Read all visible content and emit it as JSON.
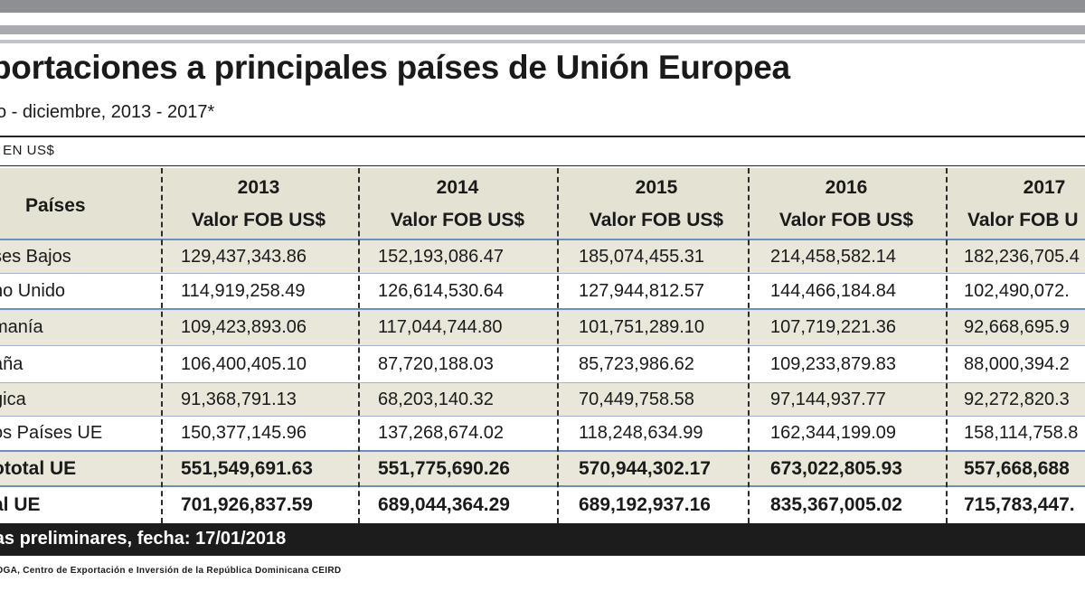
{
  "title": "portaciones a principales países de Unión Europea",
  "subtitle": "o - diciembre, 2013 - 2017*",
  "units": "S EN US$",
  "table": {
    "country_header": "Países",
    "columns": [
      {
        "year": "2013",
        "label": "Valor FOB US$"
      },
      {
        "year": "2014",
        "label": "Valor FOB US$"
      },
      {
        "year": "2015",
        "label": "Valor FOB US$"
      },
      {
        "year": "2016",
        "label": "Valor FOB US$"
      },
      {
        "year": "2017",
        "label": "Valor FOB U"
      }
    ],
    "rows": [
      {
        "country": "ses Bajos",
        "values": [
          "129,437,343.86",
          "152,193,086.47",
          "185,074,455.31",
          "214,458,582.14",
          "182,236,705.4"
        ]
      },
      {
        "country": "no Unido",
        "values": [
          "114,919,258.49",
          "126,614,530.64",
          "127,944,812.57",
          "144,466,184.84",
          "102,490,072."
        ]
      },
      {
        "country": "manía",
        "values": [
          "109,423,893.06",
          "117,044,744.80",
          "101,751,289.10",
          "107,719,221.36",
          "92,668,695.9"
        ]
      },
      {
        "country": "aña",
        "values": [
          "106,400,405.10",
          "87,720,188.03",
          "85,723,986.62",
          "109,233,879.83",
          "88,000,394.2"
        ]
      },
      {
        "country": "gica",
        "values": [
          "91,368,791.13",
          "68,203,140.32",
          "70,449,758.58",
          "97,144,937.77",
          "92,272,820.3"
        ]
      },
      {
        "country": "os Países UE",
        "values": [
          "150,377,145.96",
          "137,268,674.02",
          "118,248,634.99",
          "162,344,199.09",
          "158,114,758.8"
        ]
      },
      {
        "country": "ototal  UE",
        "values": [
          "551,549,691.63",
          "551,775,690.26",
          "570,944,302.17",
          "673,022,805.93",
          "557,668,688"
        ]
      },
      {
        "country": "al UE",
        "values": [
          "701,926,837.59",
          "689,044,364.29",
          "689,192,937.16",
          "835,367,005.02",
          "715,783,447."
        ]
      }
    ]
  },
  "footnote": "ras preliminares, fecha:  17/01/2018",
  "source": "DGA, Centro de Exportación e Inversión de la República Dominicana CEIRD"
}
